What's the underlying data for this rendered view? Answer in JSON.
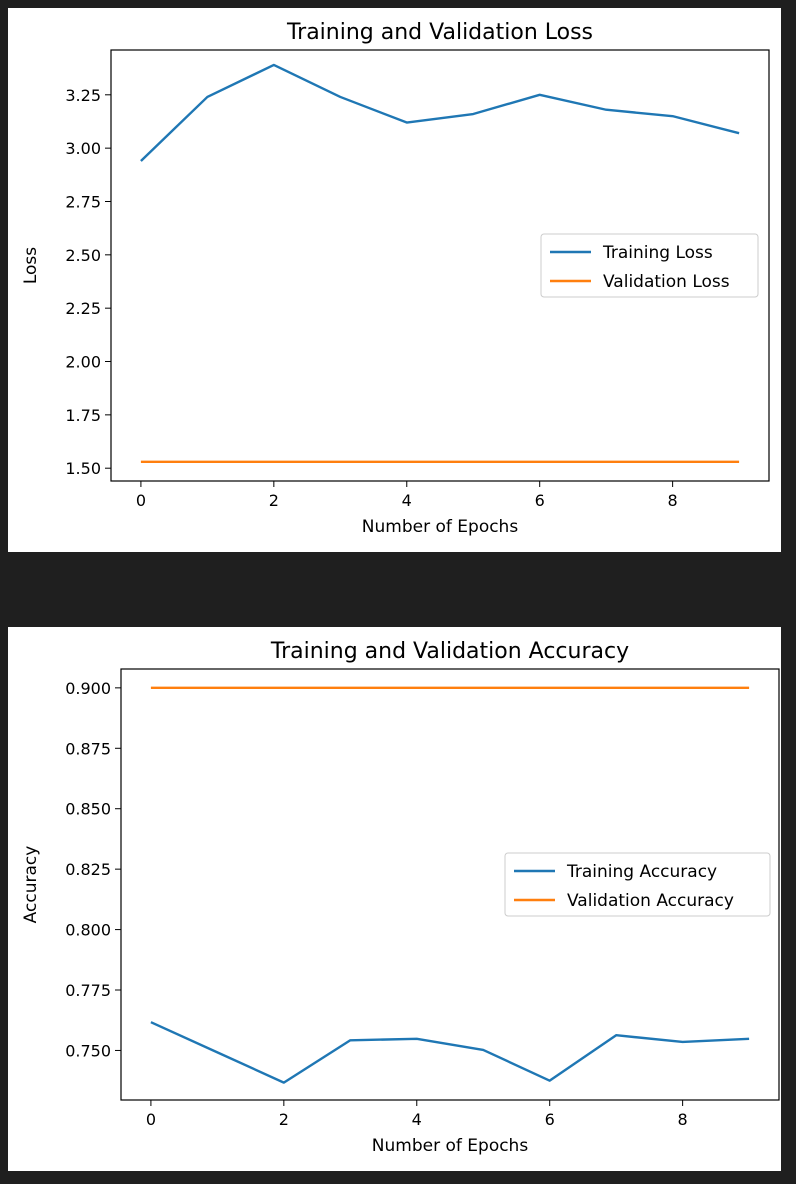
{
  "chart_data": [
    {
      "type": "line",
      "title": "Training and Validation Loss",
      "xlabel": "Number of Epochs",
      "ylabel": "Loss",
      "x": [
        0,
        1,
        2,
        3,
        4,
        5,
        6,
        7,
        8,
        9
      ],
      "xticks": [
        0,
        2,
        4,
        6,
        8
      ],
      "xticklabels": [
        "0",
        "2",
        "4",
        "6",
        "8"
      ],
      "yticks": [
        1.5,
        1.75,
        2.0,
        2.25,
        2.5,
        2.75,
        3.0,
        3.25
      ],
      "yticklabels": [
        "1.50",
        "1.75",
        "2.00",
        "2.25",
        "2.50",
        "2.75",
        "3.00",
        "3.25"
      ],
      "xlim": [
        -0.45,
        9.45
      ],
      "ylim": [
        1.44,
        3.46
      ],
      "legend_position": "center-right",
      "grid": false,
      "series": [
        {
          "name": "Training Loss",
          "color": "#1f77b4",
          "values": [
            2.94,
            3.24,
            3.39,
            3.24,
            3.12,
            3.16,
            3.25,
            3.18,
            3.15,
            3.07
          ]
        },
        {
          "name": "Validation Loss",
          "color": "#ff7f0e",
          "values": [
            1.53,
            1.53,
            1.53,
            1.53,
            1.53,
            1.53,
            1.53,
            1.53,
            1.53,
            1.53
          ]
        }
      ]
    },
    {
      "type": "line",
      "title": "Training and Validation Accuracy",
      "xlabel": "Number of Epochs",
      "ylabel": "Accuracy",
      "x": [
        0,
        1,
        2,
        3,
        4,
        5,
        6,
        7,
        8,
        9
      ],
      "xticks": [
        0,
        2,
        4,
        6,
        8
      ],
      "xticklabels": [
        "0",
        "2",
        "4",
        "6",
        "8"
      ],
      "yticks": [
        0.75,
        0.775,
        0.8,
        0.825,
        0.85,
        0.875,
        0.9
      ],
      "yticklabels": [
        "0.750",
        "0.775",
        "0.800",
        "0.825",
        "0.850",
        "0.875",
        "0.900"
      ],
      "xlim": [
        -0.45,
        9.45
      ],
      "ylim": [
        0.7295,
        0.9078
      ],
      "legend_position": "center-right",
      "grid": false,
      "series": [
        {
          "name": "Training Accuracy",
          "color": "#1f77b4",
          "values": [
            0.7617,
            0.7492,
            0.7367,
            0.7542,
            0.7548,
            0.7502,
            0.7375,
            0.7563,
            0.7535,
            0.7548
          ]
        },
        {
          "name": "Validation Accuracy",
          "color": "#ff7f0e",
          "values": [
            0.9,
            0.9,
            0.9,
            0.9,
            0.9,
            0.9,
            0.9,
            0.9,
            0.9,
            0.9
          ]
        }
      ]
    }
  ]
}
